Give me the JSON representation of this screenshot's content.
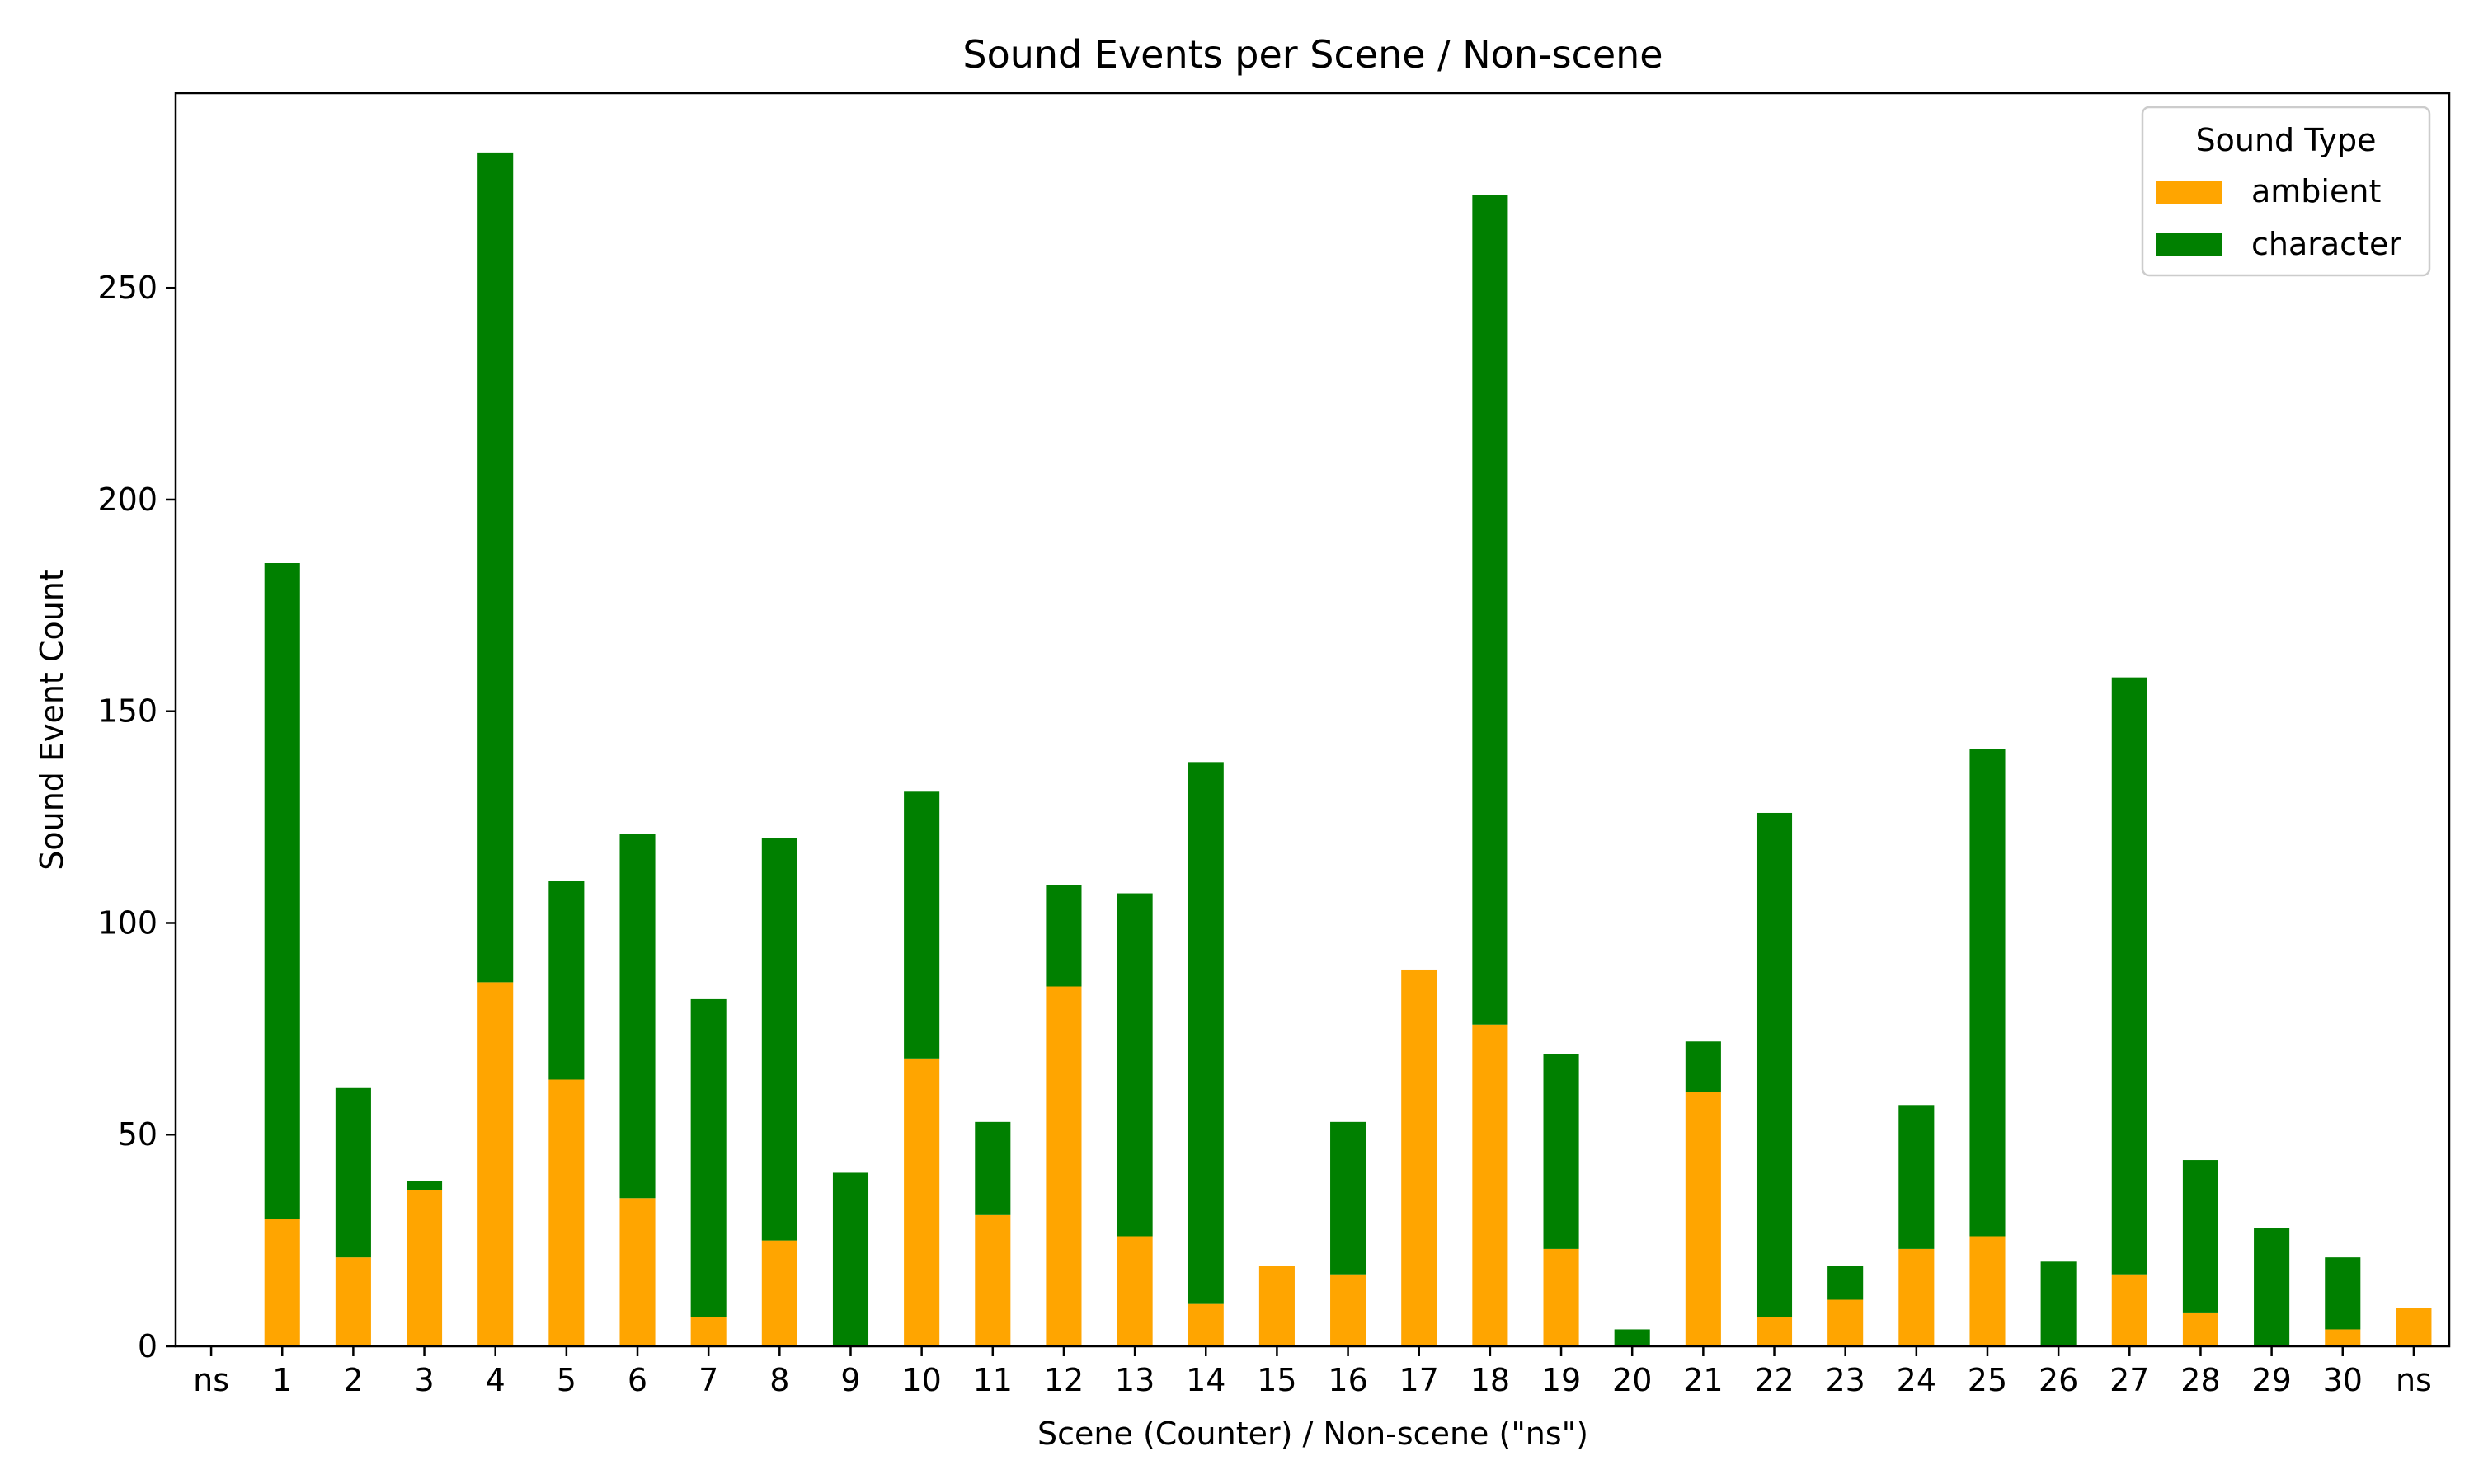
{
  "chart_data": {
    "type": "bar",
    "stacked": true,
    "title": "Sound Events per Scene / Non-scene",
    "xlabel": "Scene (Counter) / Non-scene (\"ns\")",
    "ylabel": "Sound Event Count",
    "ylim": [
      0,
      296
    ],
    "yticks": [
      0,
      50,
      100,
      150,
      200,
      250
    ],
    "grid": false,
    "legend": {
      "title": "Sound Type",
      "placement": "top-right"
    },
    "categories": [
      "ns",
      "1",
      "2",
      "3",
      "4",
      "5",
      "6",
      "7",
      "8",
      "9",
      "10",
      "11",
      "12",
      "13",
      "14",
      "15",
      "16",
      "17",
      "18",
      "19",
      "20",
      "21",
      "22",
      "23",
      "24",
      "25",
      "26",
      "27",
      "28",
      "29",
      "30",
      "ns"
    ],
    "series": [
      {
        "name": "ambient",
        "color": "#FFA500",
        "values": [
          0,
          30,
          21,
          37,
          86,
          63,
          35,
          7,
          25,
          0,
          68,
          31,
          85,
          26,
          10,
          19,
          17,
          89,
          76,
          23,
          0,
          60,
          7,
          11,
          23,
          26,
          0,
          17,
          8,
          0,
          4,
          9
        ]
      },
      {
        "name": "character",
        "color": "#008000",
        "values": [
          0,
          155,
          40,
          2,
          196,
          47,
          86,
          75,
          95,
          41,
          63,
          22,
          24,
          81,
          128,
          0,
          36,
          0,
          196,
          46,
          4,
          12,
          119,
          8,
          34,
          115,
          20,
          141,
          36,
          28,
          17,
          0
        ]
      }
    ]
  }
}
